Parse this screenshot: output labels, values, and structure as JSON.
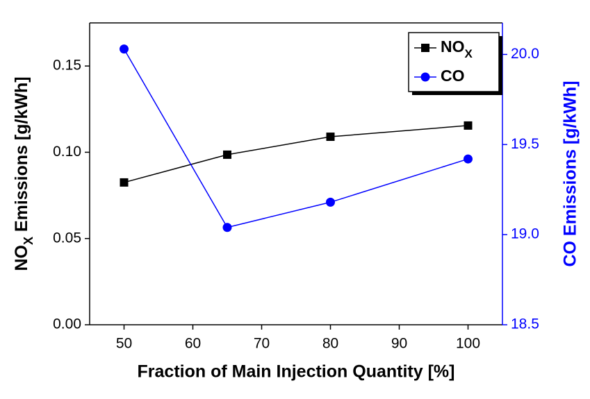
{
  "chart_data": {
    "type": "line",
    "xlabel": "Fraction of Main Injection Quantity [%]",
    "ylabel": [
      "NO",
      "X",
      " Emissions [g/kWh]"
    ],
    "y2label": "CO Emissions [g/kWh]",
    "x": [
      50,
      65,
      80,
      100
    ],
    "series": [
      {
        "name": [
          "NO",
          "X"
        ],
        "color": "#000000",
        "marker": "square",
        "values": [
          0.0825,
          0.0986,
          0.109,
          0.1155
        ]
      },
      {
        "name": "CO",
        "color": "#0000ff",
        "marker": "circle",
        "axis": "y2",
        "values": [
          20.03,
          19.04,
          19.18,
          19.42
        ]
      }
    ],
    "xlim": [
      45,
      105
    ],
    "xticks": [
      50,
      60,
      70,
      80,
      90,
      100
    ],
    "ylim": [
      0,
      0.175
    ],
    "yticks": [
      {
        "value": 0,
        "label": "0.00"
      },
      0.05,
      {
        "value": 0.1,
        "label": "0.10"
      },
      0.15
    ],
    "y2lim": [
      18.5,
      20.175
    ],
    "y2ticks": [
      {
        "value": 18.5,
        "label": "18.5"
      },
      {
        "value": 19,
        "label": "19.0"
      },
      19.5,
      {
        "value": 20,
        "label": "20.0"
      }
    ],
    "y2color": "#0000ff",
    "legend": "upper right"
  }
}
